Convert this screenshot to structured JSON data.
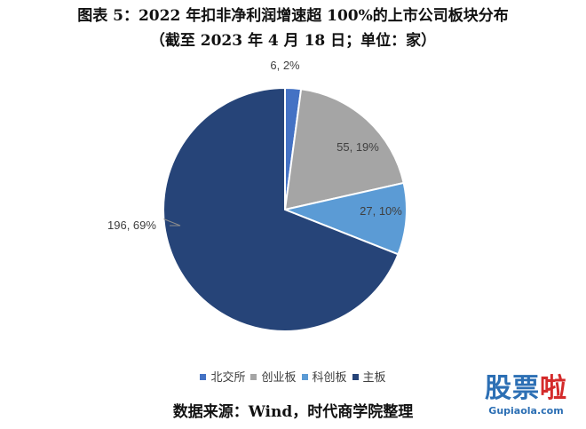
{
  "title": {
    "line1": "图表 5：2022 年扣非净利润增速超 100%的上市公司板块分布",
    "line2": "（截至 2023 年 4 月 18 日；单位：家）"
  },
  "chart_data": {
    "type": "pie",
    "title": "图表 5：2022 年扣非净利润增速超 100%的上市公司板块分布",
    "subtitle": "（截至 2023 年 4 月 18 日；单位：家）",
    "start": "12 o'clock, clockwise",
    "slices": [
      {
        "name": "北交所",
        "value": 6,
        "percent": "2%",
        "label": "6, 2%",
        "color": "#4472c4"
      },
      {
        "name": "创业板",
        "value": 55,
        "percent": "19%",
        "label": "55, 19%",
        "color": "#a5a5a5"
      },
      {
        "name": "科创板",
        "value": 27,
        "percent": "10%",
        "label": "27, 10%",
        "color": "#5b9bd5"
      },
      {
        "name": "主板",
        "value": 196,
        "percent": "69%",
        "label": "196, 69%",
        "color": "#264478"
      }
    ],
    "legend_placement": "bottom"
  },
  "legend": [
    "北交所",
    "创业板",
    "科创板",
    "主板"
  ],
  "source": "数据来源：Wind，时代商学院整理",
  "watermark": {
    "main_left": "股票",
    "main_right": "啦",
    "sub": "Gupiaola.com"
  }
}
